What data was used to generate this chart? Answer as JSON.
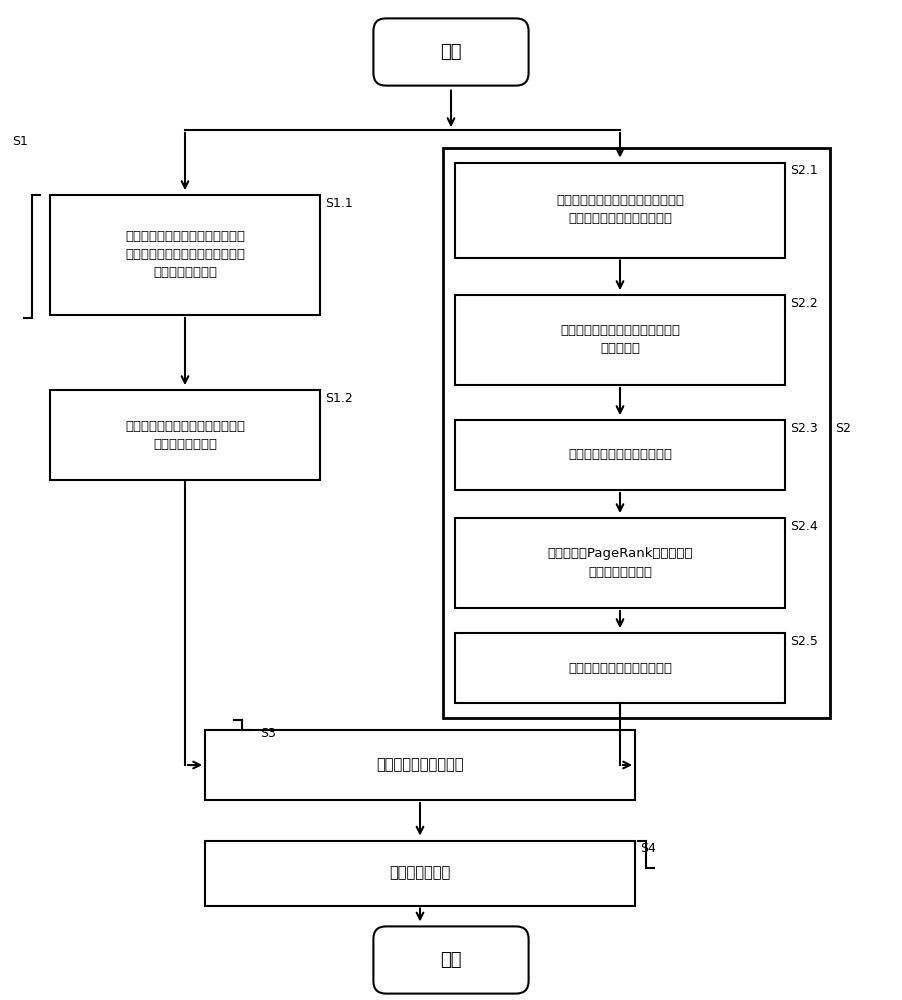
{
  "bg_color": "#ffffff",
  "line_color": "#000000",
  "text_color": "#000000",
  "start_text": "开始",
  "end_text": "结束",
  "s11_text": "周期性从交易历史记录中提取交易\n价格、评价满意度以及交易侧重权\n值向量等三个因子",
  "s12_text": "根据提取的三个因子计算消费者对\n商家的本地信任值",
  "s21_text": "根据消费者行为信息构建电商平台中\n所有消费者组成的信任网络图",
  "s22_text": "计算消费者信任网络图中节点间的\n直接信任值",
  "s23_text": "计算信任网络中边介数中心性",
  "s24_text": "利用改进的PageRank算法计算消\n费者的全局可信度",
  "s25_text": "对全局可信度进行归一化处理",
  "s3_text": "计算商家的整体信誉值",
  "s4_text": "商家信誉值更新",
  "label_s1": "S1",
  "label_s11": "S1.1",
  "label_s12": "S1.2",
  "label_s21": "S2.1",
  "label_s22": "S2.2",
  "label_s23": "S2.3",
  "label_s24": "S2.4",
  "label_s25": "S2.5",
  "label_s2": "S2",
  "label_s3": "S3",
  "label_s4": "S4"
}
